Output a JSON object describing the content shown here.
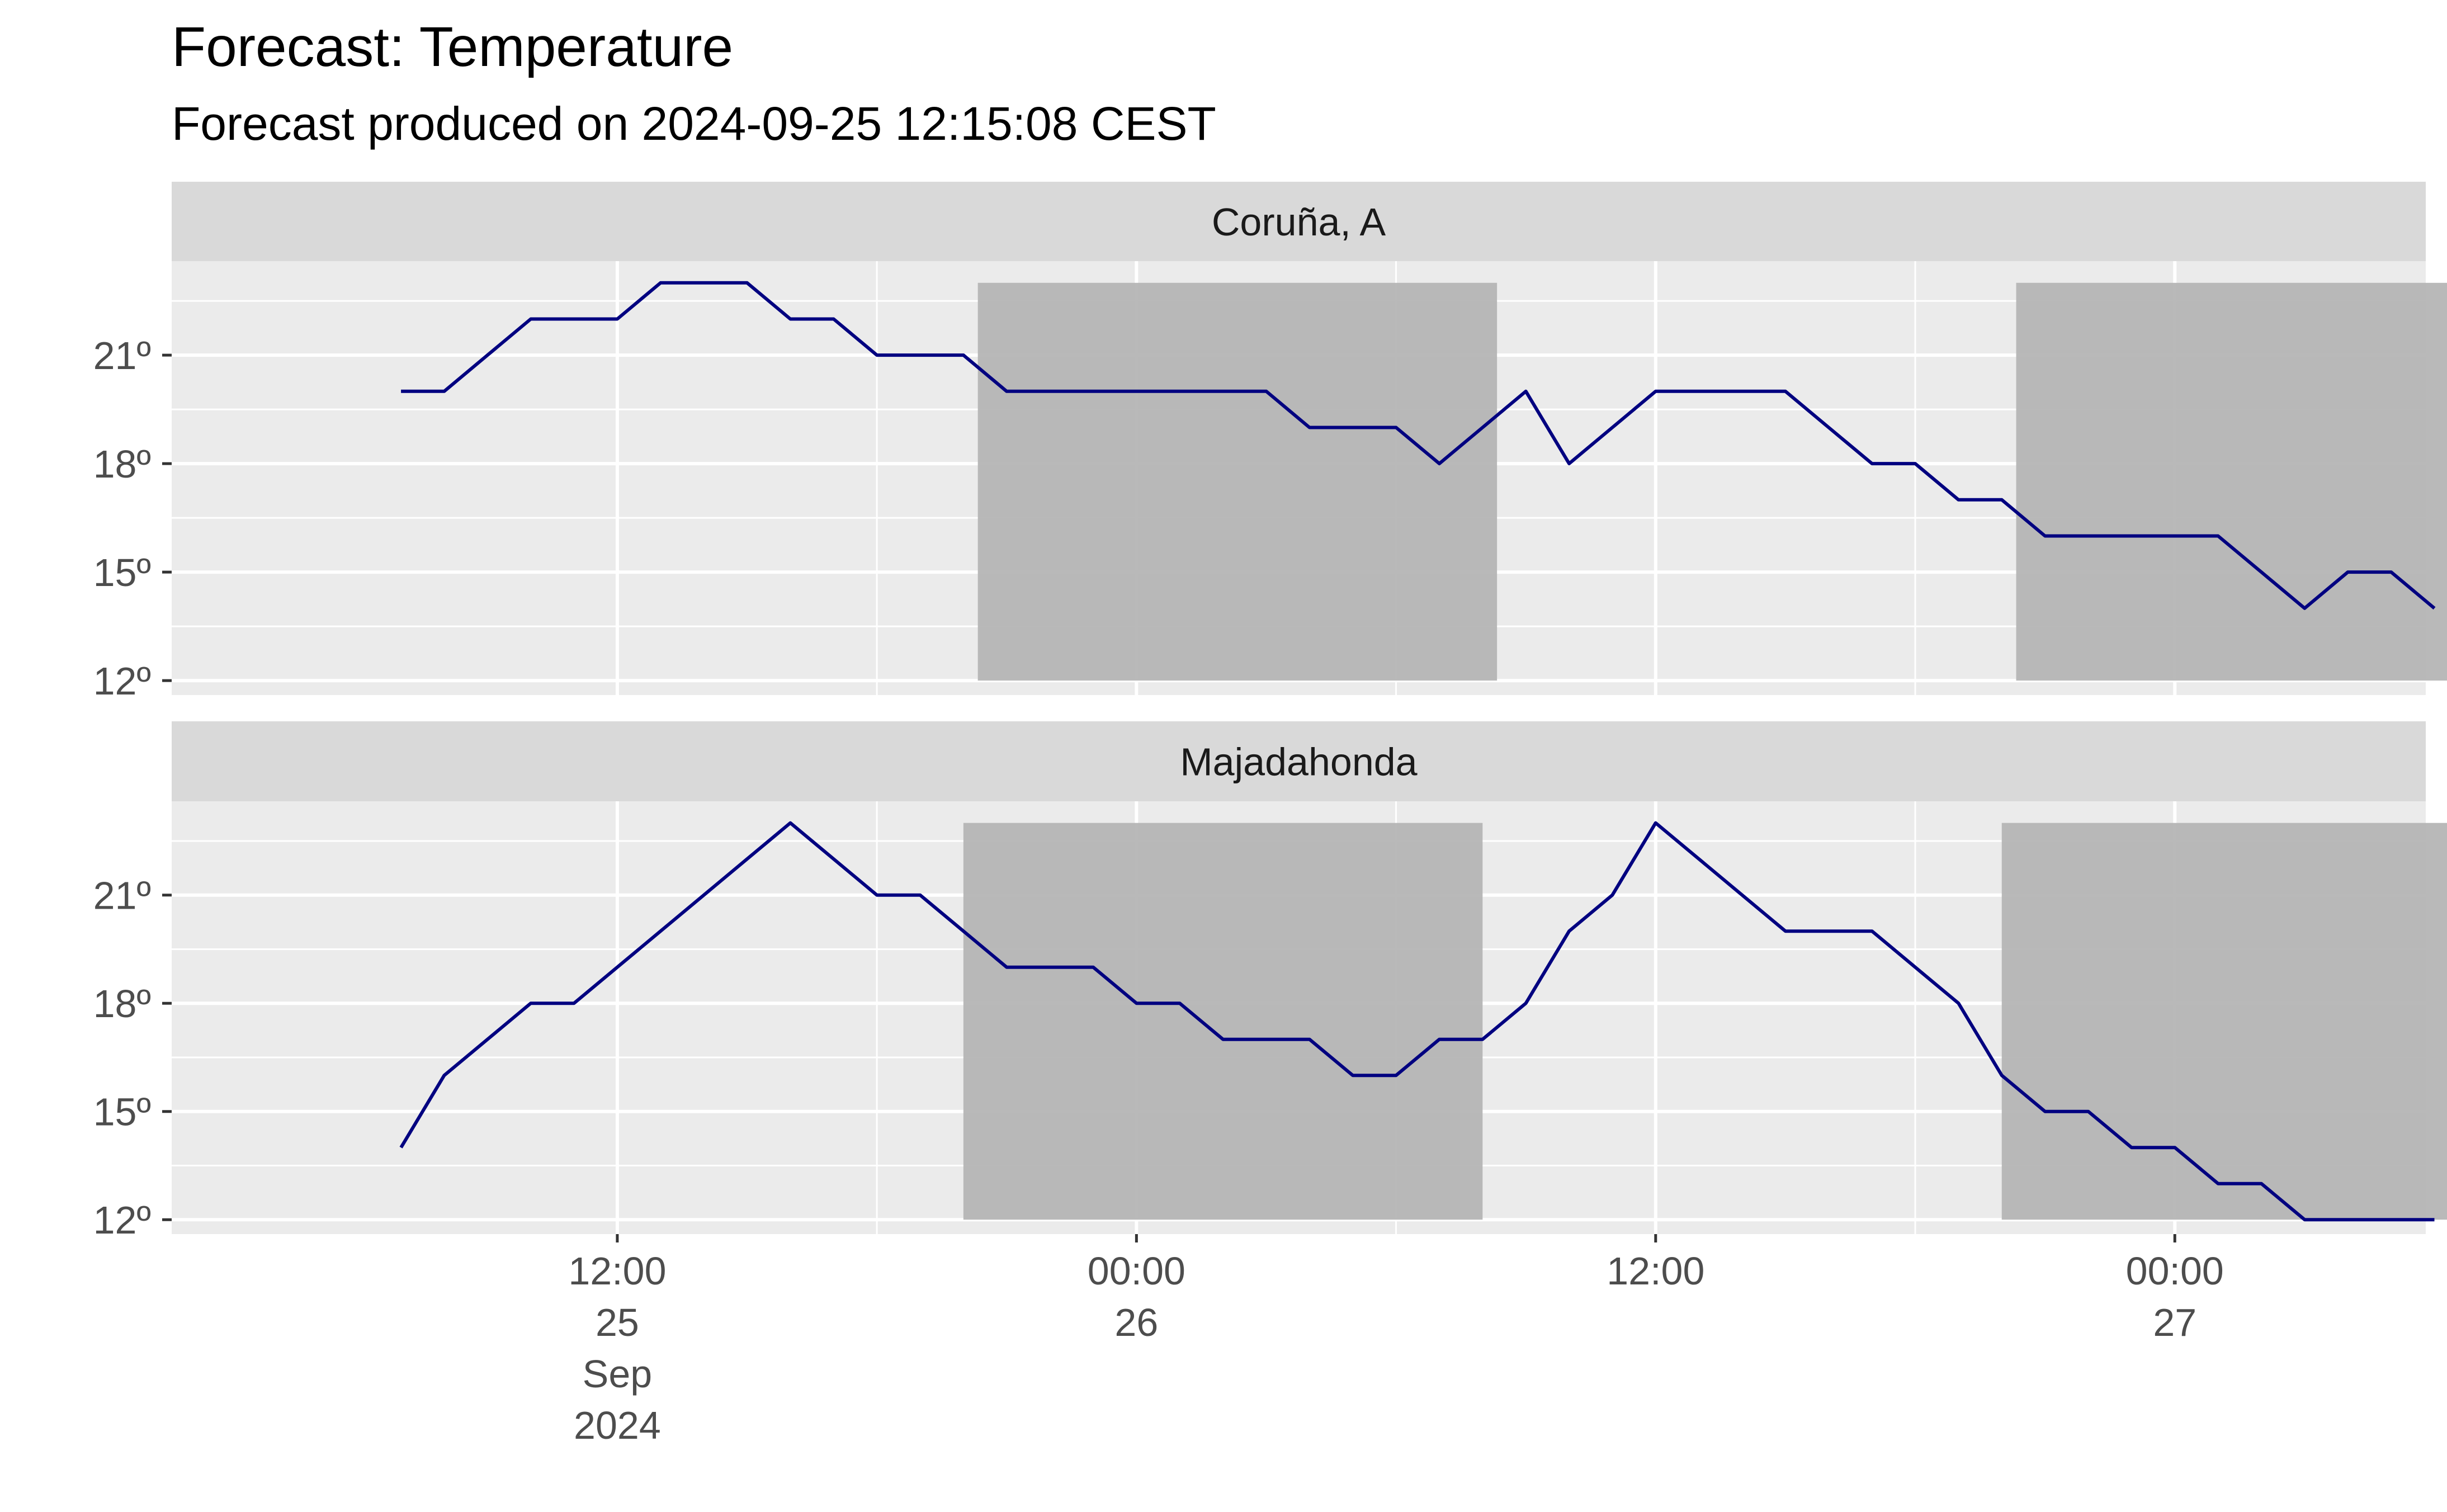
{
  "chart_data": {
    "type": "line",
    "title": "Forecast: Temperature",
    "subtitle": "Forecast produced on 2024-09-25 12:15:08 CEST",
    "x_unit": "hour",
    "x_start": "2024-09-25 07:00",
    "x_tick_labels": [
      {
        "at": "2024-09-25 12:00",
        "lines": [
          "12:00",
          "25",
          "Sep",
          "2024"
        ]
      },
      {
        "at": "2024-09-26 00:00",
        "lines": [
          "00:00",
          "26"
        ]
      },
      {
        "at": "2024-09-26 12:00",
        "lines": [
          "12:00"
        ]
      },
      {
        "at": "2024-09-27 00:00",
        "lines": [
          "00:00",
          "27"
        ]
      }
    ],
    "xlim": [
      "2024-09-25 01:42",
      "2024-09-27 05:48"
    ],
    "ylim": [
      11.6,
      23.6
    ],
    "y_ticks": [
      12,
      15,
      18,
      21
    ],
    "y_tick_labels": [
      "12º",
      "15º",
      "18º",
      "21º"
    ],
    "line_color": "#000080",
    "night_color": "#b3b3b3",
    "panel_bg": "#ebebeb",
    "strip_bg": "#d9d9d9",
    "panels": [
      {
        "name": "Coruña, A",
        "night_bands": [
          [
            "2024-09-25 20:20",
            "2024-09-26 08:20"
          ],
          [
            "2024-09-26 20:20",
            "2024-09-27 08:20"
          ]
        ],
        "times": [
          "2024-09-25 07:00",
          "2024-09-25 08:00",
          "2024-09-25 09:00",
          "2024-09-25 10:00",
          "2024-09-25 11:00",
          "2024-09-25 12:00",
          "2024-09-25 13:00",
          "2024-09-25 14:00",
          "2024-09-25 15:00",
          "2024-09-25 16:00",
          "2024-09-25 17:00",
          "2024-09-25 18:00",
          "2024-09-25 19:00",
          "2024-09-25 20:00",
          "2024-09-25 21:00",
          "2024-09-25 22:00",
          "2024-09-25 23:00",
          "2024-09-26 00:00",
          "2024-09-26 01:00",
          "2024-09-26 02:00",
          "2024-09-26 03:00",
          "2024-09-26 04:00",
          "2024-09-26 05:00",
          "2024-09-26 06:00",
          "2024-09-26 07:00",
          "2024-09-26 08:00",
          "2024-09-26 09:00",
          "2024-09-26 10:00",
          "2024-09-26 11:00",
          "2024-09-26 12:00",
          "2024-09-26 13:00",
          "2024-09-26 14:00",
          "2024-09-26 15:00",
          "2024-09-26 16:00",
          "2024-09-26 17:00",
          "2024-09-26 18:00",
          "2024-09-26 19:00",
          "2024-09-26 20:00",
          "2024-09-26 21:00",
          "2024-09-26 22:00",
          "2024-09-26 23:00",
          "2024-09-27 00:00",
          "2024-09-27 01:00",
          "2024-09-27 02:00",
          "2024-09-27 03:00",
          "2024-09-27 04:00",
          "2024-09-27 05:00",
          "2024-09-27 06:00"
        ],
        "values": [
          20,
          20,
          21,
          22,
          22,
          22,
          23,
          23,
          23,
          22,
          22,
          21,
          21,
          21,
          20,
          20,
          20,
          20,
          20,
          20,
          20,
          19,
          19,
          19,
          18,
          19,
          20,
          18,
          19,
          20,
          20,
          20,
          20,
          19,
          18,
          18,
          17,
          17,
          16,
          16,
          16,
          16,
          16,
          15,
          14,
          15,
          15,
          14
        ]
      },
      {
        "name": "Majadahonda",
        "night_bands": [
          [
            "2024-09-25 20:00",
            "2024-09-26 08:00"
          ],
          [
            "2024-09-26 20:00",
            "2024-09-27 08:00"
          ]
        ],
        "times": [
          "2024-09-25 07:00",
          "2024-09-25 08:00",
          "2024-09-25 09:00",
          "2024-09-25 10:00",
          "2024-09-25 11:00",
          "2024-09-25 12:00",
          "2024-09-25 13:00",
          "2024-09-25 14:00",
          "2024-09-25 15:00",
          "2024-09-25 16:00",
          "2024-09-25 17:00",
          "2024-09-25 18:00",
          "2024-09-25 19:00",
          "2024-09-25 20:00",
          "2024-09-25 21:00",
          "2024-09-25 22:00",
          "2024-09-25 23:00",
          "2024-09-26 00:00",
          "2024-09-26 01:00",
          "2024-09-26 02:00",
          "2024-09-26 03:00",
          "2024-09-26 04:00",
          "2024-09-26 05:00",
          "2024-09-26 06:00",
          "2024-09-26 07:00",
          "2024-09-26 08:00",
          "2024-09-26 09:00",
          "2024-09-26 10:00",
          "2024-09-26 11:00",
          "2024-09-26 12:00",
          "2024-09-26 13:00",
          "2024-09-26 14:00",
          "2024-09-26 15:00",
          "2024-09-26 16:00",
          "2024-09-26 17:00",
          "2024-09-26 18:00",
          "2024-09-26 19:00",
          "2024-09-26 20:00",
          "2024-09-26 21:00",
          "2024-09-26 22:00",
          "2024-09-26 23:00",
          "2024-09-27 00:00",
          "2024-09-27 01:00",
          "2024-09-27 02:00",
          "2024-09-27 03:00",
          "2024-09-27 04:00",
          "2024-09-27 05:00",
          "2024-09-27 06:00"
        ],
        "values": [
          14,
          16,
          17,
          18,
          18,
          19,
          20,
          21,
          22,
          23,
          22,
          21,
          21,
          20,
          19,
          19,
          19,
          18,
          18,
          17,
          17,
          17,
          16,
          16,
          17,
          17,
          18,
          20,
          21,
          23,
          22,
          21,
          20,
          20,
          20,
          19,
          18,
          16,
          15,
          15,
          14,
          14,
          13,
          13,
          12,
          12,
          12,
          12
        ]
      }
    ]
  }
}
